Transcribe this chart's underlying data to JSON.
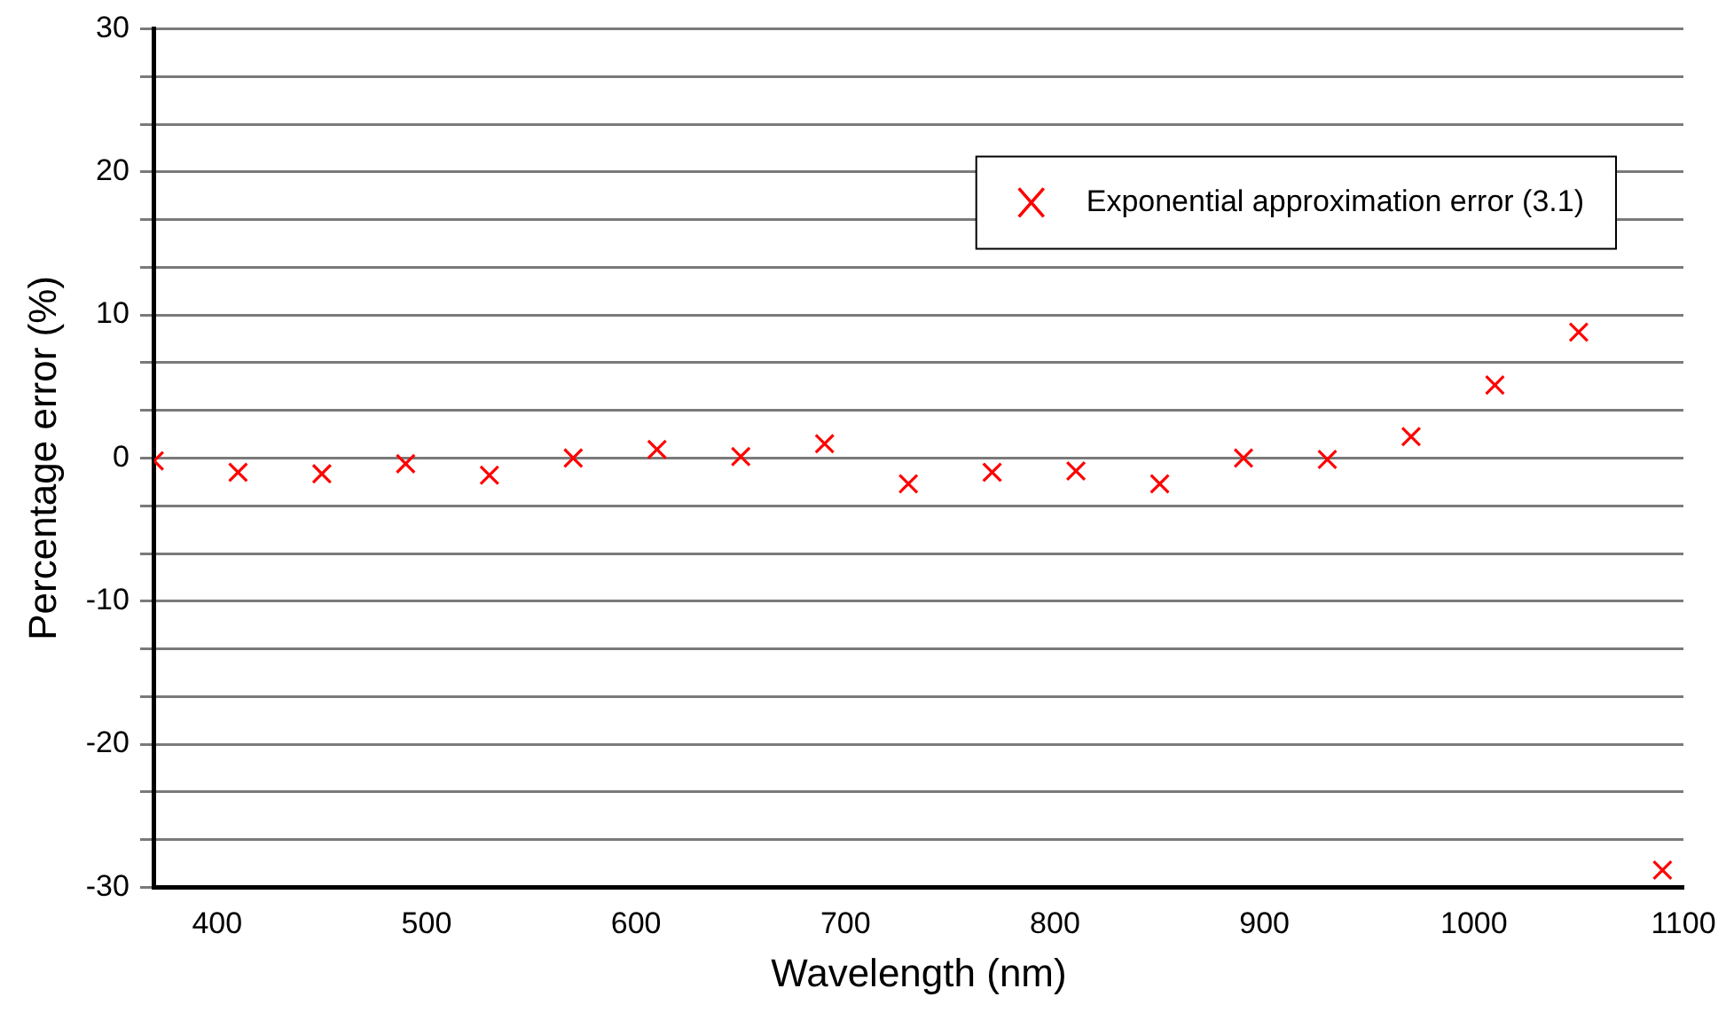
{
  "chart_data": {
    "type": "scatter",
    "xlabel": "Wavelength (nm)",
    "ylabel": "Percentage error (%)",
    "x": [
      370,
      410,
      450,
      490,
      530,
      570,
      610,
      650,
      690,
      730,
      770,
      810,
      850,
      890,
      930,
      970,
      1010,
      1050,
      1090
    ],
    "series": [
      {
        "name": "Exponential approximation error (3.1)",
        "color": "#ff0000",
        "values": [
          -0.2,
          -1.0,
          -1.1,
          -0.4,
          -1.2,
          0.0,
          0.6,
          0.1,
          1.0,
          -1.8,
          -1.0,
          -0.9,
          -1.8,
          0.0,
          -0.1,
          1.5,
          5.1,
          8.8,
          -28.8
        ]
      }
    ],
    "xlim": [
      370,
      1100
    ],
    "xticks": [
      400,
      500,
      600,
      700,
      800,
      900,
      1000,
      1100
    ],
    "ylim": [
      -30,
      30
    ],
    "yticks": [
      -30,
      {
        "value": -26.67,
        "label": null
      },
      {
        "value": -23.33,
        "label": null
      },
      -20,
      {
        "value": -16.67,
        "label": null
      },
      {
        "value": -13.33,
        "label": null
      },
      -10,
      {
        "value": -6.67,
        "label": null
      },
      {
        "value": -3.33,
        "label": null
      },
      0,
      {
        "value": 3.33,
        "label": null
      },
      {
        "value": 6.67,
        "label": null
      },
      10,
      {
        "value": 13.33,
        "label": null
      },
      {
        "value": 16.67,
        "label": null
      },
      20,
      {
        "value": 23.33,
        "label": null
      },
      {
        "value": 26.67,
        "label": null
      },
      30
    ],
    "grid": "y",
    "legend": "top right",
    "marker": "cross"
  }
}
